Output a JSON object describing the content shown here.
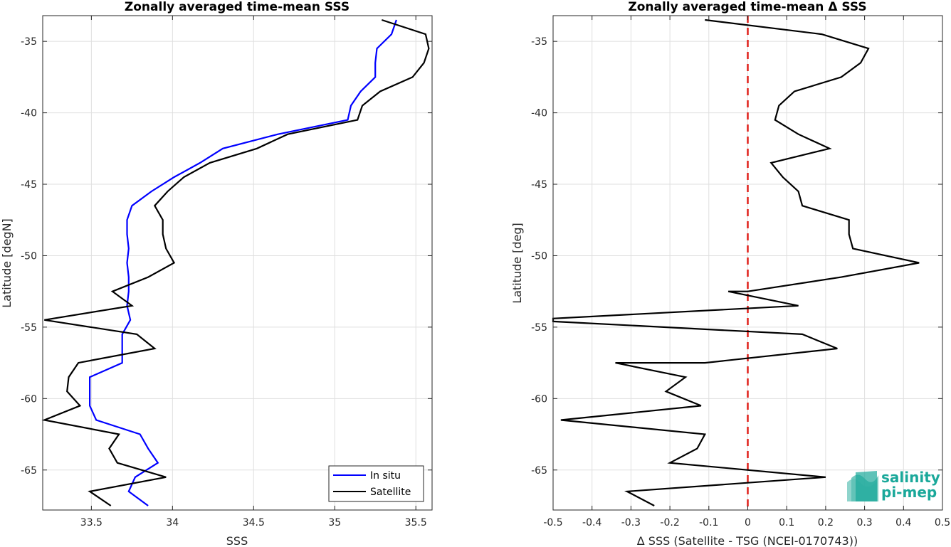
{
  "colors": {
    "insitu": "#0000ff",
    "satellite": "#000000",
    "zero_line": "#e0201a",
    "logo": "#1aa89a"
  },
  "logo": {
    "line1": "salinity",
    "line2": "pi-mep",
    "icon": "wave-stack-icon"
  },
  "chart_data": [
    {
      "type": "line",
      "title": "Zonally averaged time-mean SSS",
      "xlabel": "SSS",
      "ylabel": "Latitude [degN]",
      "xlim": [
        33.2,
        35.6
      ],
      "ylim": [
        -67.8,
        -33.2
      ],
      "xticks": [
        33.5,
        34,
        34.5,
        35,
        35.5
      ],
      "xtick_labels": [
        "33.5",
        "34",
        "34.5",
        "35",
        "35.5"
      ],
      "yticks": [
        -35,
        -40,
        -45,
        -50,
        -55,
        -60,
        -65
      ],
      "ytick_labels": [
        "-35",
        "-40",
        "-45",
        "-50",
        "-55",
        "-60",
        "-65"
      ],
      "grid": true,
      "legend": "bottom-right",
      "series": [
        {
          "name": "In situ",
          "color": "#0000ff",
          "points": [
            [
              35.38,
              -33.5
            ],
            [
              35.35,
              -34.5
            ],
            [
              35.26,
              -35.5
            ],
            [
              35.25,
              -36.5
            ],
            [
              35.25,
              -37.5
            ],
            [
              35.16,
              -38.5
            ],
            [
              35.1,
              -39.5
            ],
            [
              35.08,
              -40.5
            ],
            [
              34.65,
              -41.5
            ],
            [
              34.31,
              -42.5
            ],
            [
              34.17,
              -43.5
            ],
            [
              34.01,
              -44.5
            ],
            [
              33.87,
              -45.5
            ],
            [
              33.75,
              -46.5
            ],
            [
              33.72,
              -47.5
            ],
            [
              33.72,
              -48.5
            ],
            [
              33.73,
              -49.5
            ],
            [
              33.72,
              -50.5
            ],
            [
              33.73,
              -51.5
            ],
            [
              33.73,
              -52.5
            ],
            [
              33.72,
              -53.5
            ],
            [
              33.74,
              -54.5
            ],
            [
              33.69,
              -55.5
            ],
            [
              33.69,
              -56.5
            ],
            [
              33.69,
              -57.5
            ],
            [
              33.49,
              -58.5
            ],
            [
              33.49,
              -59.5
            ],
            [
              33.49,
              -60.5
            ],
            [
              33.53,
              -61.5
            ],
            [
              33.8,
              -62.5
            ],
            [
              33.85,
              -63.5
            ],
            [
              33.91,
              -64.5
            ],
            [
              33.77,
              -65.5
            ],
            [
              33.73,
              -66.5
            ],
            [
              33.85,
              -67.5
            ]
          ]
        },
        {
          "name": "Satellite",
          "color": "#000000",
          "points": [
            [
              35.29,
              -33.5
            ],
            [
              35.56,
              -34.5
            ],
            [
              35.58,
              -35.5
            ],
            [
              35.55,
              -36.5
            ],
            [
              35.48,
              -37.5
            ],
            [
              35.28,
              -38.5
            ],
            [
              35.17,
              -39.5
            ],
            [
              35.14,
              -40.5
            ],
            [
              34.71,
              -41.5
            ],
            [
              34.52,
              -42.5
            ],
            [
              34.23,
              -43.5
            ],
            [
              34.07,
              -44.5
            ],
            [
              33.97,
              -45.5
            ],
            [
              33.89,
              -46.5
            ],
            [
              33.94,
              -47.5
            ],
            [
              33.94,
              -48.5
            ],
            [
              33.96,
              -49.5
            ],
            [
              34.01,
              -50.5
            ],
            [
              33.85,
              -51.5
            ],
            [
              33.63,
              -52.5
            ],
            [
              33.75,
              -53.5
            ],
            [
              33.21,
              -54.5
            ],
            [
              33.78,
              -55.5
            ],
            [
              33.89,
              -56.5
            ],
            [
              33.42,
              -57.5
            ],
            [
              33.36,
              -58.5
            ],
            [
              33.35,
              -59.5
            ],
            [
              33.43,
              -60.5
            ],
            [
              33.21,
              -61.5
            ],
            [
              33.67,
              -62.5
            ],
            [
              33.61,
              -63.5
            ],
            [
              33.66,
              -64.5
            ],
            [
              33.96,
              -65.5
            ],
            [
              33.49,
              -66.5
            ],
            [
              33.62,
              -67.5
            ]
          ]
        }
      ]
    },
    {
      "type": "line",
      "title": "Zonally averaged time-mean Δ SSS",
      "xlabel": "Δ SSS (Satellite - TSG (NCEI-0170743))",
      "ylabel": "Latitude [deg]",
      "xlim": [
        -0.5,
        0.5
      ],
      "ylim": [
        -67.8,
        -33.2
      ],
      "xticks": [
        -0.5,
        -0.4,
        -0.3,
        -0.2,
        -0.1,
        0,
        0.1,
        0.2,
        0.3,
        0.4,
        0.5
      ],
      "xtick_labels": [
        "-0.5",
        "-0.4",
        "-0.3",
        "-0.2",
        "-0.1",
        "0",
        "0.1",
        "0.2",
        "0.3",
        "0.4",
        "0.5"
      ],
      "yticks": [
        -35,
        -40,
        -45,
        -50,
        -55,
        -60,
        -65
      ],
      "ytick_labels": [
        "-35",
        "-40",
        "-45",
        "-50",
        "-55",
        "-60",
        "-65"
      ],
      "grid": true,
      "reference_line": {
        "x": 0,
        "style": "dashed",
        "color": "#e0201a"
      },
      "series": [
        {
          "color": "#000000",
          "points": [
            [
              -0.11,
              -33.5
            ],
            [
              0.19,
              -34.5
            ],
            [
              0.31,
              -35.5
            ],
            [
              0.29,
              -36.5
            ],
            [
              0.24,
              -37.5
            ],
            [
              0.12,
              -38.5
            ],
            [
              0.08,
              -39.5
            ],
            [
              0.07,
              -40.5
            ],
            [
              0.13,
              -41.5
            ],
            [
              0.21,
              -42.5
            ],
            [
              0.06,
              -43.5
            ],
            [
              0.09,
              -44.5
            ],
            [
              0.13,
              -45.5
            ],
            [
              0.14,
              -46.5
            ],
            [
              0.26,
              -47.5
            ],
            [
              0.26,
              -48.5
            ],
            [
              0.27,
              -49.5
            ],
            [
              0.44,
              -50.5
            ],
            [
              0.24,
              -51.5
            ],
            [
              0.0,
              -52.5
            ],
            [
              -0.05,
              -52.5
            ],
            [
              0.13,
              -53.5
            ],
            [
              -0.5,
              -54.4
            ],
            [
              -0.5,
              -54.6
            ],
            [
              0.14,
              -55.5
            ],
            [
              0.23,
              -56.5
            ],
            [
              -0.11,
              -57.5
            ],
            [
              -0.34,
              -57.5
            ],
            [
              -0.16,
              -58.5
            ],
            [
              -0.21,
              -59.5
            ],
            [
              -0.12,
              -60.5
            ],
            [
              -0.48,
              -61.5
            ],
            [
              -0.11,
              -62.5
            ],
            [
              -0.13,
              -63.5
            ],
            [
              -0.2,
              -64.5
            ],
            [
              0.2,
              -65.5
            ],
            [
              -0.31,
              -66.5
            ],
            [
              -0.24,
              -67.5
            ]
          ]
        }
      ]
    }
  ]
}
